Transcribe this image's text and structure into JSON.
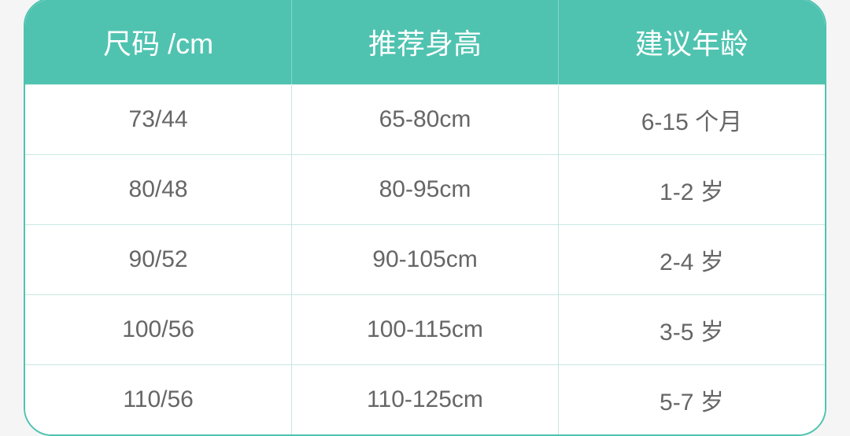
{
  "table": {
    "type": "table",
    "header_bg_color": "#4fc3b0",
    "header_text_color": "#ffffff",
    "header_fontsize": 36,
    "cell_text_color": "#666666",
    "cell_fontsize": 30,
    "cell_bg_color": "#ffffff",
    "border_color": "#c8e8e2",
    "outer_border_color": "#4fc3b0",
    "border_radius": 36,
    "columns": [
      "尺码 /cm",
      "推荐身高",
      "建议年龄"
    ],
    "rows": [
      [
        "73/44",
        "65-80cm",
        "6-15 个月"
      ],
      [
        "80/48",
        "80-95cm",
        "1-2 岁"
      ],
      [
        "90/52",
        "90-105cm",
        "2-4 岁"
      ],
      [
        "100/56",
        "100-115cm",
        "3-5 岁"
      ],
      [
        "110/56",
        "110-125cm",
        "5-7 岁"
      ]
    ]
  }
}
